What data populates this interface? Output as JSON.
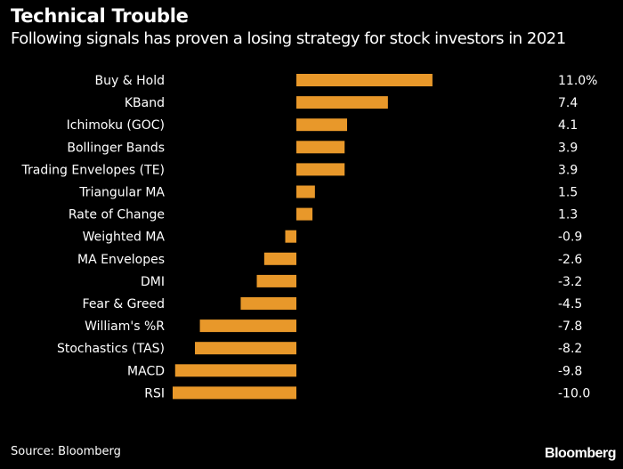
{
  "header": {
    "title": "Technical Trouble",
    "subtitle": "Following signals has proven a losing strategy for stock investors in 2021"
  },
  "footer": {
    "source": "Source: Bloomberg",
    "brand": "Bloomberg"
  },
  "colors": {
    "background": "#000000",
    "bar": "#e8982a",
    "text": "#ffffff"
  },
  "chart_data": {
    "type": "bar",
    "orientation": "horizontal",
    "title": "Technical Trouble",
    "subtitle": "Following signals has proven a losing strategy for stock investors in 2021",
    "xlabel": "",
    "ylabel": "",
    "xlim": [
      -10,
      11
    ],
    "grid": false,
    "legend": "none",
    "categories": [
      "Buy & Hold",
      "KBand",
      "Ichimoku (GOC)",
      "Bollinger Bands",
      "Trading Envelopes (TE)",
      "Triangular MA",
      "Rate of Change",
      "Weighted MA",
      "MA Envelopes",
      "DMI",
      "Fear & Greed",
      "William's %R",
      "Stochastics (TAS)",
      "MACD",
      "RSI"
    ],
    "values": [
      11.0,
      7.4,
      4.1,
      3.9,
      3.9,
      1.5,
      1.3,
      -0.9,
      -2.6,
      -3.2,
      -4.5,
      -7.8,
      -8.2,
      -9.8,
      -10.0
    ],
    "value_labels": [
      "11.0%",
      "7.4",
      "4.1",
      "3.9",
      "3.9",
      "1.5",
      "1.3",
      "-0.9",
      "-2.6",
      "-3.2",
      "-4.5",
      "-7.8",
      "-8.2",
      "-9.8",
      "-10.0"
    ]
  }
}
